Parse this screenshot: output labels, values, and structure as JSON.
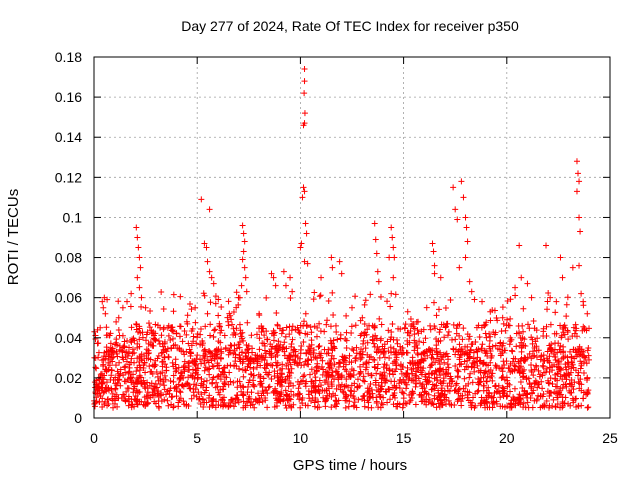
{
  "chart_data": {
    "type": "scatter",
    "title": "Day 277 of 2024, Rate Of TEC Index for receiver p350",
    "xlabel": "GPS time / hours",
    "ylabel": "ROTI / TECUs",
    "xlim": [
      0,
      25
    ],
    "ylim": [
      0,
      0.18
    ],
    "x_ticks": [
      0,
      5,
      10,
      15,
      20,
      25
    ],
    "x_tick_labels": [
      "0",
      "5",
      "10",
      "15",
      "20",
      "25"
    ],
    "y_ticks": [
      0,
      0.02,
      0.04,
      0.06,
      0.08,
      0.1,
      0.12,
      0.14,
      0.16,
      0.18
    ],
    "y_tick_labels": [
      "0",
      "0.02",
      "0.04",
      "0.06",
      "0.08",
      "0.1",
      "0.12",
      "0.14",
      "0.16",
      "0.18"
    ],
    "grid": true,
    "marker": "+",
    "series_color": "#ff0000",
    "data_range_hours": [
      0,
      24
    ],
    "dense_band_roti": [
      0.005,
      0.035
    ],
    "points": [
      [
        0.4,
        0.058
      ],
      [
        0.45,
        0.055
      ],
      [
        0.5,
        0.06
      ],
      [
        0.55,
        0.052
      ],
      [
        0.3,
        0.045
      ],
      [
        1.2,
        0.05
      ],
      [
        1.4,
        0.055
      ],
      [
        1.6,
        0.058
      ],
      [
        1.8,
        0.062
      ],
      [
        2.05,
        0.095
      ],
      [
        2.1,
        0.09
      ],
      [
        2.15,
        0.085
      ],
      [
        2.2,
        0.08
      ],
      [
        2.25,
        0.075
      ],
      [
        2.1,
        0.07
      ],
      [
        2.2,
        0.065
      ],
      [
        2.3,
        0.06
      ],
      [
        2.5,
        0.055
      ],
      [
        3.2,
        0.045
      ],
      [
        4.0,
        0.042
      ],
      [
        4.5,
        0.048
      ],
      [
        4.9,
        0.055
      ],
      [
        5.2,
        0.109
      ],
      [
        5.35,
        0.087
      ],
      [
        5.45,
        0.085
      ],
      [
        5.6,
        0.104
      ],
      [
        5.5,
        0.078
      ],
      [
        5.6,
        0.073
      ],
      [
        5.7,
        0.07
      ],
      [
        5.8,
        0.067
      ],
      [
        5.9,
        0.057
      ],
      [
        5.5,
        0.052
      ],
      [
        6.5,
        0.048
      ],
      [
        7.0,
        0.06
      ],
      [
        7.2,
        0.096
      ],
      [
        7.25,
        0.092
      ],
      [
        7.3,
        0.088
      ],
      [
        7.25,
        0.083
      ],
      [
        7.2,
        0.079
      ],
      [
        7.3,
        0.075
      ],
      [
        7.35,
        0.07
      ],
      [
        7.15,
        0.066
      ],
      [
        7.4,
        0.063
      ],
      [
        8.0,
        0.052
      ],
      [
        8.6,
        0.072
      ],
      [
        8.7,
        0.07
      ],
      [
        8.8,
        0.066
      ],
      [
        9.2,
        0.073
      ],
      [
        9.3,
        0.066
      ],
      [
        9.5,
        0.07
      ],
      [
        9.6,
        0.063
      ],
      [
        10.0,
        0.085
      ],
      [
        10.05,
        0.087
      ],
      [
        10.1,
        0.11
      ],
      [
        10.15,
        0.115
      ],
      [
        10.2,
        0.113
      ],
      [
        10.15,
        0.146
      ],
      [
        10.2,
        0.147
      ],
      [
        10.22,
        0.152
      ],
      [
        10.18,
        0.162
      ],
      [
        10.2,
        0.168
      ],
      [
        10.2,
        0.174
      ],
      [
        10.25,
        0.097
      ],
      [
        10.3,
        0.092
      ],
      [
        10.2,
        0.078
      ],
      [
        10.35,
        0.077
      ],
      [
        11.0,
        0.07
      ],
      [
        11.5,
        0.08
      ],
      [
        11.55,
        0.075
      ],
      [
        11.9,
        0.078
      ],
      [
        12.0,
        0.072
      ],
      [
        12.5,
        0.055
      ],
      [
        13.0,
        0.05
      ],
      [
        13.6,
        0.097
      ],
      [
        13.65,
        0.089
      ],
      [
        13.7,
        0.082
      ],
      [
        13.75,
        0.073
      ],
      [
        13.8,
        0.068
      ],
      [
        14.3,
        0.08
      ],
      [
        14.4,
        0.095
      ],
      [
        14.45,
        0.09
      ],
      [
        14.5,
        0.085
      ],
      [
        14.55,
        0.08
      ],
      [
        14.5,
        0.07
      ],
      [
        14.4,
        0.062
      ],
      [
        15.2,
        0.053
      ],
      [
        15.7,
        0.048
      ],
      [
        16.4,
        0.087
      ],
      [
        16.45,
        0.083
      ],
      [
        16.5,
        0.076
      ],
      [
        16.5,
        0.072
      ],
      [
        16.8,
        0.07
      ],
      [
        17.4,
        0.115
      ],
      [
        17.5,
        0.104
      ],
      [
        17.6,
        0.099
      ],
      [
        17.8,
        0.118
      ],
      [
        17.9,
        0.11
      ],
      [
        18.0,
        0.1
      ],
      [
        18.05,
        0.095
      ],
      [
        18.1,
        0.088
      ],
      [
        18.0,
        0.08
      ],
      [
        17.7,
        0.075
      ],
      [
        18.2,
        0.068
      ],
      [
        18.3,
        0.063
      ],
      [
        18.8,
        0.058
      ],
      [
        19.2,
        0.053
      ],
      [
        19.8,
        0.05
      ],
      [
        20.4,
        0.065
      ],
      [
        20.6,
        0.086
      ],
      [
        20.7,
        0.07
      ],
      [
        21.0,
        0.067
      ],
      [
        21.2,
        0.06
      ],
      [
        21.9,
        0.086
      ],
      [
        22.1,
        0.06
      ],
      [
        22.4,
        0.058
      ],
      [
        22.6,
        0.08
      ],
      [
        22.7,
        0.07
      ],
      [
        23.2,
        0.075
      ],
      [
        23.4,
        0.128
      ],
      [
        23.45,
        0.122
      ],
      [
        23.5,
        0.118
      ],
      [
        23.4,
        0.113
      ],
      [
        23.5,
        0.1
      ],
      [
        23.55,
        0.093
      ],
      [
        23.5,
        0.076
      ],
      [
        23.6,
        0.062
      ],
      [
        23.7,
        0.058
      ],
      [
        23.9,
        0.052
      ]
    ]
  }
}
